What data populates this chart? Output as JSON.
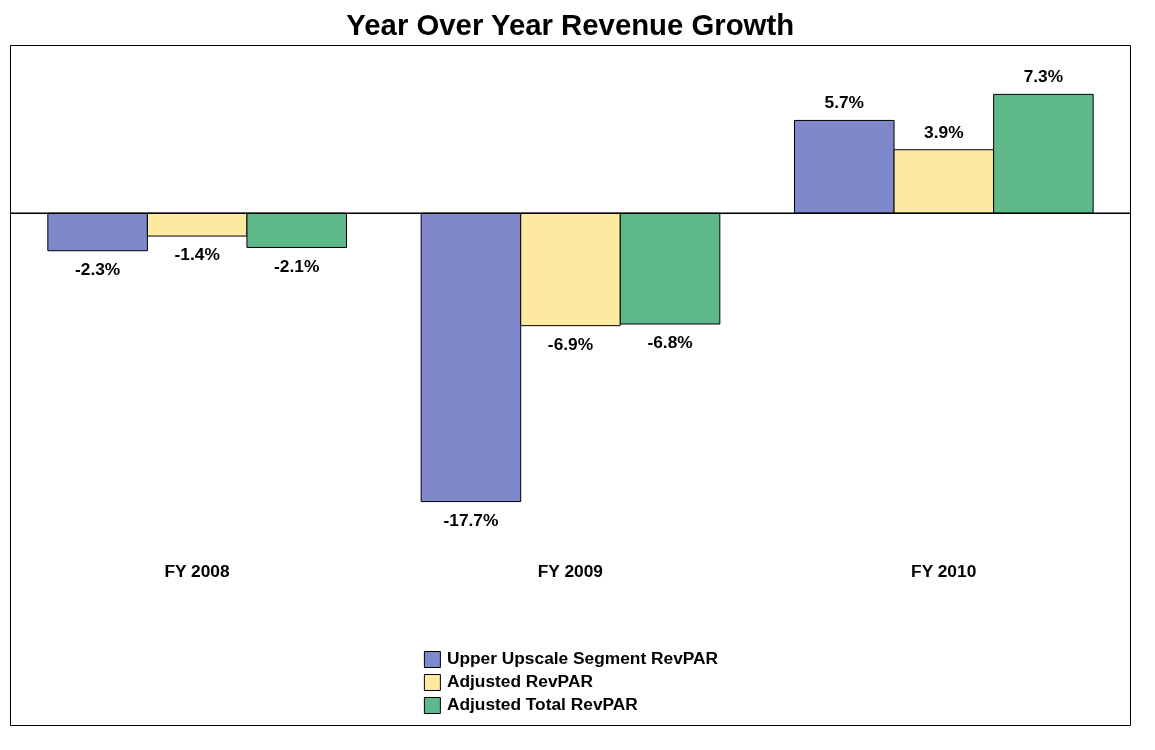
{
  "chart_data": {
    "type": "bar",
    "title": "Year Over Year Revenue Growth",
    "categories": [
      "FY 2008",
      "FY 2009",
      "FY 2010"
    ],
    "series": [
      {
        "name": "Upper Upscale Segment RevPAR",
        "color": "#8088cc",
        "values": [
          -2.3,
          -17.7,
          5.7
        ],
        "value_labels": [
          "-2.3%",
          "-17.7%",
          "5.7%"
        ]
      },
      {
        "name": "Adjusted RevPAR",
        "color": "#fde9a0",
        "values": [
          -1.4,
          -6.9,
          3.9
        ],
        "value_labels": [
          "-1.4%",
          "-6.9%",
          "3.9%"
        ]
      },
      {
        "name": "Adjusted Total RevPAR",
        "color": "#5fb88a",
        "values": [
          -2.1,
          -6.8,
          7.3
        ],
        "value_labels": [
          "-2.1%",
          "-6.8%",
          "7.3%"
        ]
      }
    ],
    "legend": "bottom"
  }
}
